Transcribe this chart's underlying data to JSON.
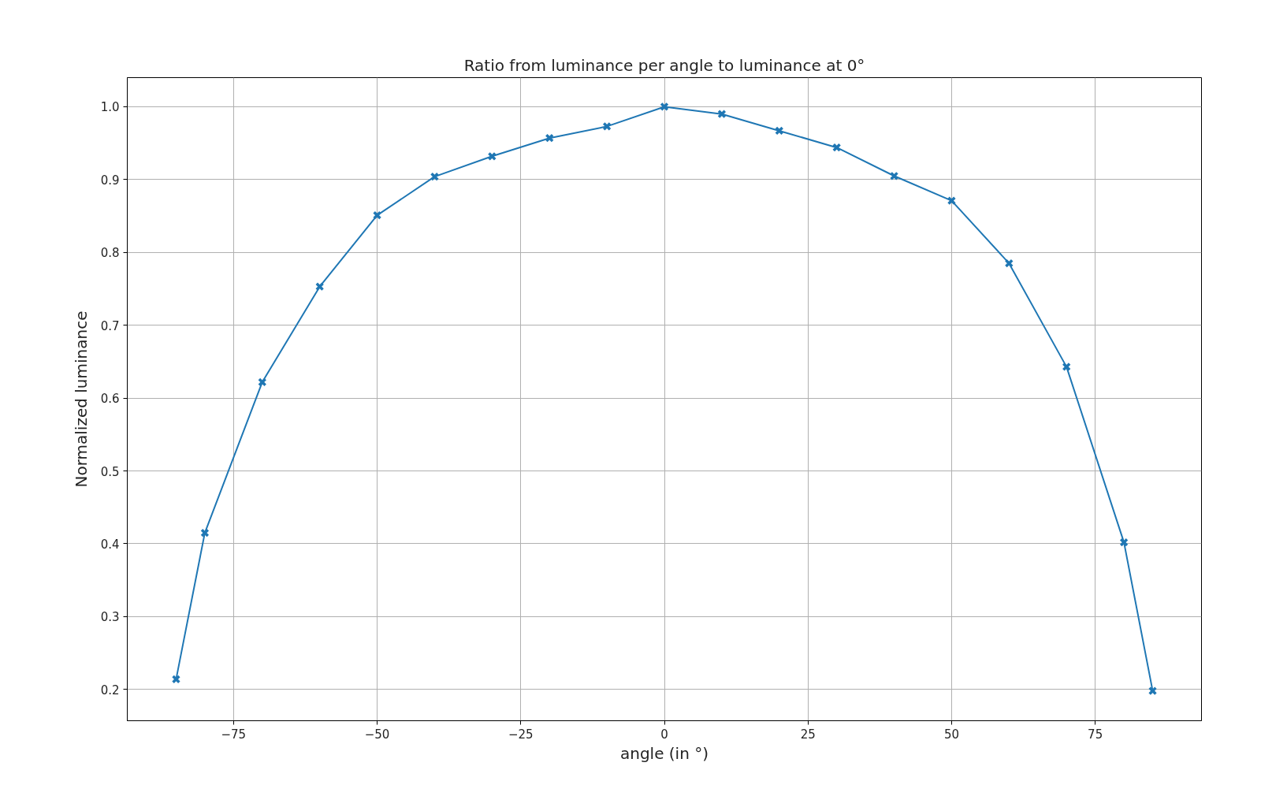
{
  "chart_data": {
    "type": "line",
    "title": "Ratio from luminance per angle to luminance at 0°",
    "xlabel": "angle (in °)",
    "ylabel": "Normalized luminance",
    "x": [
      -85,
      -80,
      -70,
      -60,
      -50,
      -40,
      -30,
      -20,
      -10,
      0,
      10,
      20,
      30,
      40,
      50,
      60,
      70,
      80,
      85
    ],
    "series": [
      {
        "color": "#1f77b4",
        "values": [
          0.214,
          0.415,
          0.622,
          0.753,
          0.851,
          0.904,
          0.932,
          0.957,
          0.973,
          1.0,
          0.99,
          0.967,
          0.944,
          0.905,
          0.871,
          0.785,
          0.643,
          0.402,
          0.198
        ]
      }
    ],
    "xlim": [
      -93.5,
      93.5
    ],
    "ylim": [
      0.157,
      1.04
    ],
    "xticks": [
      {
        "value": -75,
        "label": "−75"
      },
      {
        "value": -50,
        "label": "−50"
      },
      {
        "value": -25,
        "label": "−25"
      },
      0,
      25,
      50,
      75
    ],
    "yticks": [
      0.2,
      0.3,
      0.4,
      0.5,
      0.6,
      0.7,
      0.8,
      0.9,
      {
        "value": 1.0,
        "label": "1.0"
      }
    ],
    "grid": true,
    "marker": "cross",
    "line_style": "solid"
  }
}
